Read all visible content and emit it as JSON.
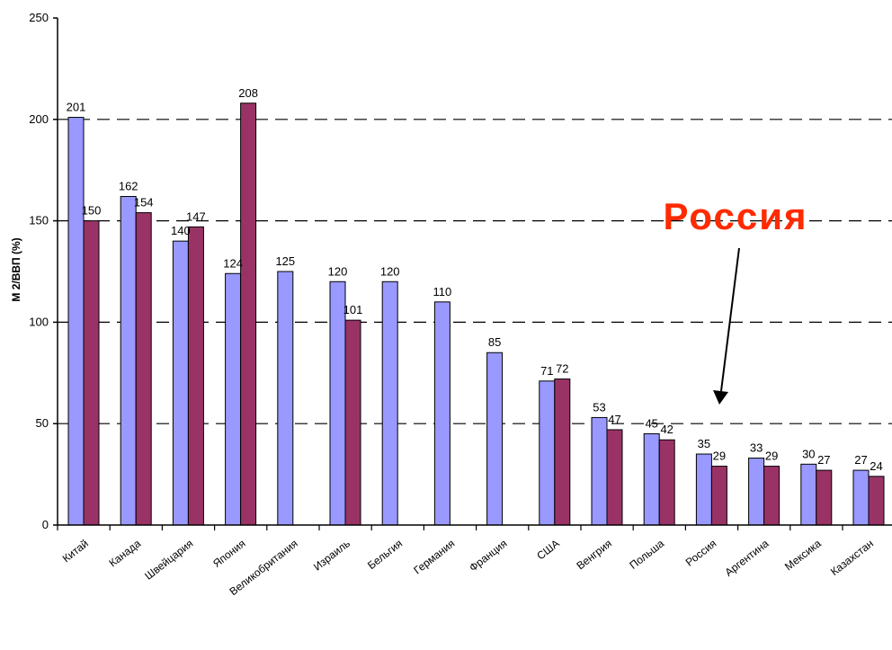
{
  "chart_data": {
    "type": "bar",
    "title": "",
    "xlabel": "",
    "ylabel": "М 2/ВВП (%)",
    "ylim": [
      0,
      250
    ],
    "yticks": [
      0,
      50,
      100,
      150,
      200,
      250
    ],
    "grid": "dashed horizontal",
    "categories": [
      "Китай",
      "Канада",
      "Швейцария",
      "Япония",
      "Великобритания",
      "Израиль",
      "Бельгия",
      "Германия",
      "Франция",
      "США",
      "Венгрия",
      "Польша",
      "Россия",
      "Аргентина",
      "Мексика",
      "Казахстан"
    ],
    "series": [
      {
        "color": "#9999ff",
        "values": [
          201,
          162,
          140,
          124,
          125,
          120,
          120,
          110,
          85,
          71,
          53,
          45,
          35,
          33,
          30,
          27
        ],
        "labels": [
          "201",
          "162",
          "140",
          "124",
          "125",
          "120",
          "120",
          "110",
          "85",
          "71",
          "53",
          "45",
          "35",
          "33",
          "30",
          "27"
        ]
      },
      {
        "color": "#993366",
        "values": [
          150,
          154,
          147,
          208,
          null,
          101,
          null,
          null,
          null,
          72,
          47,
          42,
          29,
          29,
          27,
          24
        ],
        "labels": [
          "150",
          "154",
          "147",
          "208",
          "",
          "101",
          "",
          "",
          "",
          "72",
          "47",
          "42",
          "29",
          "29",
          "27",
          "24"
        ]
      }
    ],
    "annotation": {
      "text": "Россия",
      "target_category": "Россия",
      "color": "#ff2a00"
    }
  }
}
